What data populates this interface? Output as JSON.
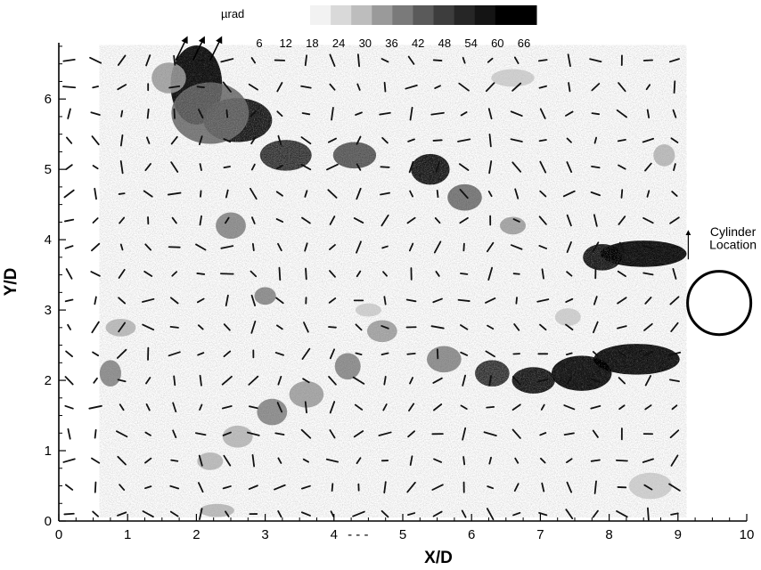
{
  "chart_data": {
    "type": "heatmap",
    "title": "",
    "xlabel": "X/D",
    "ylabel": "Y/D",
    "xlim": [
      0,
      10
    ],
    "ylim": [
      0,
      6.8
    ],
    "x_ticks": [
      "0",
      "1",
      "2",
      "3",
      "4",
      "5",
      "6",
      "7",
      "8",
      "9",
      "10"
    ],
    "y_ticks": [
      "0",
      "1",
      "2",
      "3",
      "4",
      "5",
      "6"
    ],
    "x_dash_annotation": "- - -",
    "grid": false,
    "legend": {
      "title": "µrad",
      "placement": "top",
      "colors": [
        "#f2f2f2",
        "#d9d9d9",
        "#bdbdbd",
        "#9a9a9a",
        "#7a7a7a",
        "#5a5a5a",
        "#3d3d3d",
        "#262626",
        "#141414",
        "#000000",
        "#000000"
      ],
      "tick_labels": [
        "6",
        "12",
        "18",
        "24",
        "30",
        "36",
        "42",
        "48",
        "54",
        "60",
        "66"
      ]
    },
    "intensity_regions": [
      {
        "x": 2.0,
        "y": 6.2,
        "w": 0.6,
        "h": 0.9,
        "level": 66
      },
      {
        "x": 2.6,
        "y": 5.7,
        "w": 0.8,
        "h": 0.5,
        "level": 54
      },
      {
        "x": 3.3,
        "y": 5.2,
        "w": 0.6,
        "h": 0.35,
        "level": 48
      },
      {
        "x": 2.2,
        "y": 5.8,
        "w": 0.9,
        "h": 0.7,
        "level": 36
      },
      {
        "x": 1.6,
        "y": 6.3,
        "w": 0.4,
        "h": 0.35,
        "level": 24
      },
      {
        "x": 4.3,
        "y": 5.2,
        "w": 0.5,
        "h": 0.3,
        "level": 42
      },
      {
        "x": 5.4,
        "y": 5.0,
        "w": 0.45,
        "h": 0.35,
        "level": 54
      },
      {
        "x": 5.9,
        "y": 4.6,
        "w": 0.4,
        "h": 0.3,
        "level": 36
      },
      {
        "x": 6.6,
        "y": 4.2,
        "w": 0.3,
        "h": 0.2,
        "level": 24
      },
      {
        "x": 2.5,
        "y": 4.2,
        "w": 0.35,
        "h": 0.3,
        "level": 30
      },
      {
        "x": 3.0,
        "y": 3.2,
        "w": 0.25,
        "h": 0.2,
        "level": 30
      },
      {
        "x": 8.5,
        "y": 3.8,
        "w": 1.0,
        "h": 0.3,
        "level": 66
      },
      {
        "x": 7.9,
        "y": 3.75,
        "w": 0.45,
        "h": 0.3,
        "level": 54
      },
      {
        "x": 8.4,
        "y": 2.3,
        "w": 1.0,
        "h": 0.35,
        "level": 60
      },
      {
        "x": 7.6,
        "y": 2.1,
        "w": 0.7,
        "h": 0.4,
        "level": 60
      },
      {
        "x": 6.9,
        "y": 2.0,
        "w": 0.5,
        "h": 0.3,
        "level": 54
      },
      {
        "x": 6.3,
        "y": 2.1,
        "w": 0.4,
        "h": 0.3,
        "level": 48
      },
      {
        "x": 5.6,
        "y": 2.3,
        "w": 0.4,
        "h": 0.3,
        "level": 30
      },
      {
        "x": 4.7,
        "y": 2.7,
        "w": 0.35,
        "h": 0.25,
        "level": 24
      },
      {
        "x": 4.2,
        "y": 2.2,
        "w": 0.3,
        "h": 0.3,
        "level": 30
      },
      {
        "x": 3.6,
        "y": 1.8,
        "w": 0.4,
        "h": 0.3,
        "level": 24
      },
      {
        "x": 3.1,
        "y": 1.55,
        "w": 0.35,
        "h": 0.3,
        "level": 30
      },
      {
        "x": 2.6,
        "y": 1.2,
        "w": 0.35,
        "h": 0.25,
        "level": 18
      },
      {
        "x": 2.2,
        "y": 0.85,
        "w": 0.3,
        "h": 0.2,
        "level": 18
      },
      {
        "x": 0.75,
        "y": 2.1,
        "w": 0.25,
        "h": 0.3,
        "level": 30
      },
      {
        "x": 0.9,
        "y": 2.75,
        "w": 0.35,
        "h": 0.2,
        "level": 18
      },
      {
        "x": 8.6,
        "y": 0.5,
        "w": 0.5,
        "h": 0.3,
        "level": 12
      },
      {
        "x": 2.3,
        "y": 0.15,
        "w": 0.4,
        "h": 0.15,
        "level": 18
      },
      {
        "x": 8.8,
        "y": 5.2,
        "w": 0.25,
        "h": 0.25,
        "level": 18
      },
      {
        "x": 6.6,
        "y": 6.3,
        "w": 0.5,
        "h": 0.2,
        "level": 12
      },
      {
        "x": 4.5,
        "y": 3.0,
        "w": 0.3,
        "h": 0.15,
        "level": 12
      },
      {
        "x": 7.4,
        "y": 2.9,
        "w": 0.3,
        "h": 0.2,
        "level": 12
      }
    ],
    "vector_field": {
      "x_range": [
        0.15,
        8.95
      ],
      "y_range": [
        0.1,
        6.55
      ],
      "columns": 24,
      "rows": 18,
      "description": "local displacement direction markers"
    },
    "annotations": [
      {
        "text": "Cylinder",
        "x": 9.8,
        "y": 4.05
      },
      {
        "text": "Location",
        "x": 9.8,
        "y": 3.87
      }
    ],
    "cylinder": {
      "center_x": 9.6,
      "center_y": 3.1,
      "radius": 0.46
    }
  }
}
